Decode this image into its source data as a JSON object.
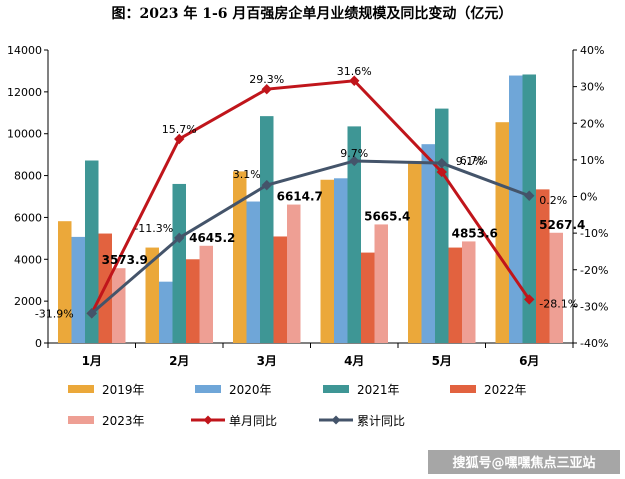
{
  "chart_data": {
    "type": "bar",
    "title": "图：2023 年 1-6 月百强房企单月业绩规模及同比变动（亿元）",
    "categories": [
      "1月",
      "2月",
      "3月",
      "4月",
      "5月",
      "6月"
    ],
    "series": [
      {
        "name": "2019年",
        "color": "#EBA83A",
        "values": [
          5820,
          4560,
          8200,
          7800,
          8700,
          10550
        ]
      },
      {
        "name": "2020年",
        "color": "#6FA6D8",
        "values": [
          5070,
          2930,
          6760,
          7870,
          9500,
          12780
        ]
      },
      {
        "name": "2021年",
        "color": "#3E9695",
        "values": [
          8720,
          7600,
          10840,
          10350,
          11200,
          12830
        ]
      },
      {
        "name": "2022年",
        "color": "#E2623F",
        "values": [
          5230,
          4000,
          5090,
          4320,
          4560,
          7340
        ]
      },
      {
        "name": "2023年",
        "color": "#EE9F94",
        "values": [
          3573.9,
          4645.2,
          6614.7,
          5665.4,
          4853.6,
          5267.4
        ]
      }
    ],
    "value_labels": [
      "3573.9",
      "4645.2",
      "6614.7",
      "5665.4",
      "4853.6",
      "5267.4"
    ],
    "lines": [
      {
        "name": "单月同比",
        "color": "#C0151B",
        "values": [
          -31.9,
          15.7,
          29.3,
          31.6,
          6.7,
          -28.1
        ],
        "labels": [
          "-31.9%",
          "15.7%",
          "29.3%",
          "31.6%",
          "6.7%",
          "-28.1%"
        ]
      },
      {
        "name": "累计同比",
        "color": "#44546A",
        "values": [
          -31.9,
          -11.3,
          3.1,
          9.7,
          9.1,
          0.2
        ],
        "labels": [
          "",
          "-11.3%",
          "3.1%",
          "9.7%",
          "9.1%",
          "0.2%"
        ]
      }
    ],
    "y_left": {
      "min": 0,
      "max": 14000,
      "step": 2000,
      "ticks": [
        "0",
        "2000",
        "4000",
        "6000",
        "8000",
        "10000",
        "12000",
        "14000"
      ]
    },
    "y_right": {
      "min": -40,
      "max": 40,
      "step": 10,
      "ticks": [
        "-40%",
        "-30%",
        "-20%",
        "-10%",
        "0%",
        "10%",
        "20%",
        "30%",
        "40%"
      ]
    },
    "grid": false,
    "legend": "bottom"
  },
  "watermark": "搜狐号@嘿嘿焦点三亚站"
}
